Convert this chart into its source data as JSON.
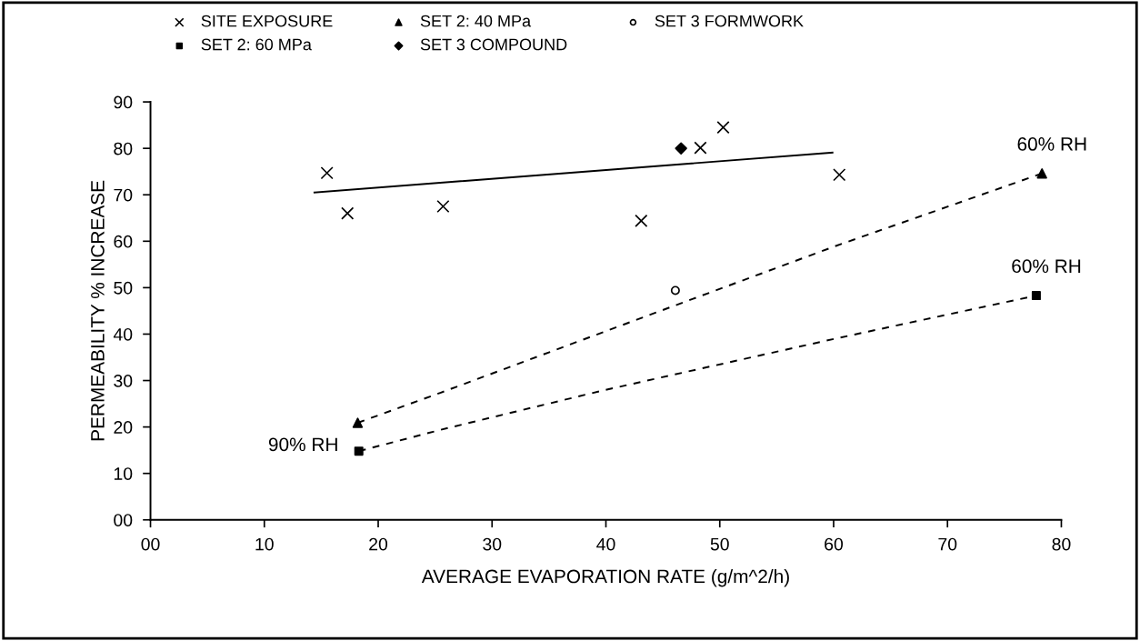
{
  "chart_data": {
    "type": "scatter",
    "xlabel": "AVERAGE EVAPORATION RATE (g/m^2/h)",
    "ylabel": "PERMEABILITY % INCREASE",
    "series": [
      {
        "name": "SITE EXPOSURE",
        "marker": "cross",
        "color": "#000000",
        "x": [
          15.5,
          17.3,
          25.7,
          43.1,
          48.3,
          50.3,
          60.5
        ],
        "values": [
          74.7,
          66.0,
          67.5,
          64.4,
          80.1,
          84.5,
          74.3
        ]
      },
      {
        "name": "SET 2: 40 MPa",
        "marker": "triangle",
        "color": "#000000",
        "x": [
          18.2,
          78.3
        ],
        "values": [
          20.9,
          74.6
        ]
      },
      {
        "name": "SET 3 FORMWORK",
        "marker": "circle",
        "color": "#000000",
        "x": [
          46.1
        ],
        "values": [
          49.4
        ]
      },
      {
        "name": "SET 2: 60 MPa",
        "marker": "square",
        "color": "#000000",
        "x": [
          18.3,
          77.8
        ],
        "values": [
          14.8,
          48.3
        ]
      },
      {
        "name": "SET 3 COMPOUND",
        "marker": "diamond",
        "color": "#000000",
        "x": [
          46.6
        ],
        "values": [
          80.0
        ]
      },
      {
        "type": "line",
        "line_style": "solid",
        "color": "#000000",
        "x": [
          14.4,
          59.9
        ],
        "values": [
          70.5,
          79.1
        ]
      },
      {
        "type": "line",
        "line_style": "dashed",
        "color": "#000000",
        "x": [
          18.2,
          25.5,
          42.7,
          60.1,
          78.3
        ],
        "values": [
          20.9,
          27.4,
          43.1,
          58.9,
          74.6
        ]
      },
      {
        "type": "line",
        "line_style": "dashed",
        "color": "#000000",
        "x": [
          18.3,
          25.5,
          39.8,
          60.1,
          77.8
        ],
        "values": [
          14.8,
          19.4,
          27.9,
          39.0,
          48.3
        ]
      }
    ],
    "annotations": [
      {
        "text": "90% RH",
        "x": 18.3,
        "y": 14.8
      },
      {
        "text": "60% RH",
        "x": 78.3,
        "y": 74.6
      },
      {
        "text": "60% RH",
        "x": 77.8,
        "y": 48.3
      }
    ],
    "xlim": [
      0,
      80
    ],
    "ylim": [
      0,
      90
    ],
    "xticks": [
      {
        "value": 0,
        "label": "00"
      },
      10,
      20,
      30,
      40,
      50,
      60,
      70,
      80
    ],
    "yticks": [
      {
        "value": 0,
        "label": "00"
      },
      10,
      20,
      30,
      40,
      50,
      60,
      70,
      80,
      90
    ],
    "grid": false,
    "legend": "top"
  }
}
